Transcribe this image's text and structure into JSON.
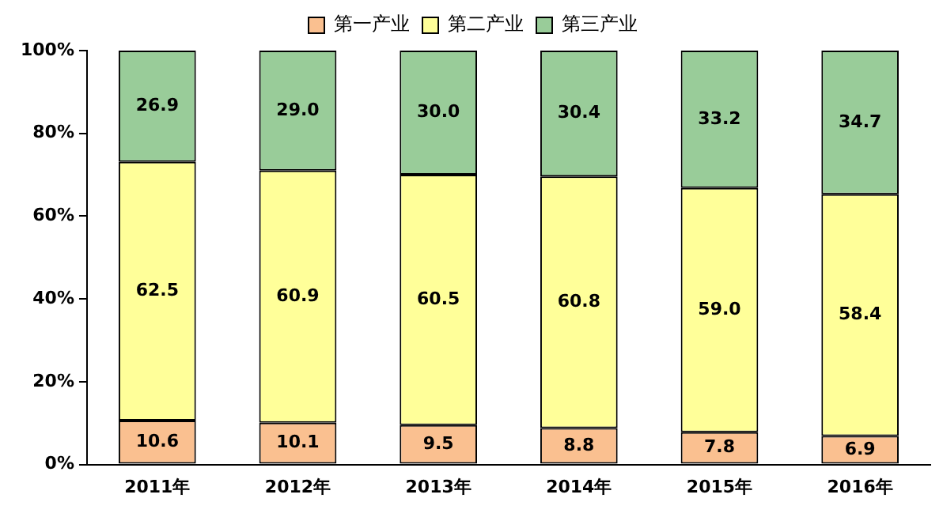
{
  "chart_data": {
    "type": "bar",
    "stacked": true,
    "categories": [
      "2011年",
      "2012年",
      "2013年",
      "2014年",
      "2015年",
      "2016年"
    ],
    "series": [
      {
        "name": "第一产业",
        "color": "#fac090",
        "values": [
          10.6,
          10.1,
          9.5,
          8.8,
          7.8,
          6.9
        ],
        "value_labels": [
          "10.6",
          "10.1",
          "9.5",
          "8.8",
          "7.8",
          "6.9"
        ]
      },
      {
        "name": "第二产业",
        "color": "#ffff99",
        "values": [
          62.5,
          60.9,
          60.5,
          60.8,
          59.0,
          58.4
        ],
        "value_labels": [
          "62.5",
          "60.9",
          "60.5",
          "60.8",
          "59.0",
          "58.4"
        ]
      },
      {
        "name": "第三产业",
        "color": "#99cc99",
        "values": [
          26.9,
          29.0,
          30.0,
          30.4,
          33.2,
          34.7
        ],
        "value_labels": [
          "26.9",
          "29.0",
          "30.0",
          "30.4",
          "33.2",
          "34.7"
        ]
      }
    ],
    "ylim": [
      0,
      100
    ],
    "yticks": [
      {
        "value": 0,
        "label": "0%"
      },
      {
        "value": 20,
        "label": "20%"
      },
      {
        "value": 40,
        "label": "40%"
      },
      {
        "value": 60,
        "label": "60%"
      },
      {
        "value": 80,
        "label": "80%"
      },
      {
        "value": 100,
        "label": "100%"
      }
    ],
    "grid": false,
    "legend": "top"
  }
}
